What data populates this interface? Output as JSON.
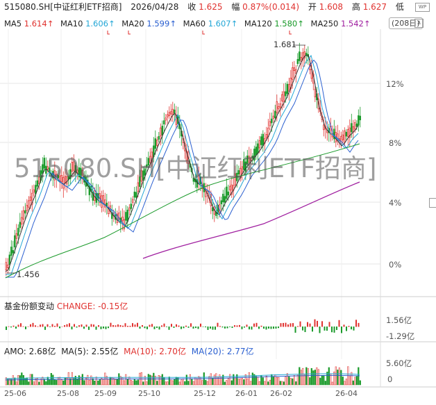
{
  "header": {
    "symbol": "515080.SH[中证红利ETF招商]",
    "date": "2026/04/28",
    "close_label": "收",
    "close_value": "1.625",
    "change_label": "幅",
    "change_value": "0.87%(0.014)",
    "open_label": "开",
    "open_value": "1.608",
    "high_label": "高",
    "high_value": "1.627",
    "low_label": "低"
  },
  "ma_bar": {
    "items": [
      {
        "label": "MA5",
        "value": "1.614↑",
        "color": "#e0322f"
      },
      {
        "label": "MA10",
        "value": "1.606↑",
        "color": "#22a6d6"
      },
      {
        "label": "MA20",
        "value": "1.599↑",
        "color": "#2a5fd0"
      },
      {
        "label": "MA60",
        "value": "1.607↑",
        "color": "#22a6d6"
      },
      {
        "label": "MA120",
        "value": "1.580↑",
        "color": "#1a9a2a"
      },
      {
        "label": "MA250",
        "value": "1.542↑",
        "color": "#a020a0"
      }
    ],
    "days_button": "(208日)"
  },
  "watermark": "515080.SH[中证红利ETF招商]",
  "price_annotations": {
    "high": "1.681",
    "low": "1.456"
  },
  "right_axis": [
    "12%",
    "8%",
    "4%",
    "0%"
  ],
  "fund_share": {
    "title": "基金份额变动",
    "change_label": "CHANGE: -0.15亿",
    "axis_top": "1.56亿",
    "axis_bottom": "-1.29亿"
  },
  "amo": {
    "amo": "AMO: 2.68亿",
    "ma5": "MA(5): 2.55亿",
    "ma10": "MA(10): 2.70亿",
    "ma20": "MA(20): 2.77亿",
    "axis_top": "5.60亿",
    "axis_bottom": "0"
  },
  "date_axis": [
    "25-06",
    "25-08",
    "25-09",
    "25-10",
    "25-12",
    "26-01",
    "26-02",
    "26-04"
  ],
  "icons": {
    "wp": "WP",
    "collapse": "∧"
  },
  "colors": {
    "up": "#e0322f",
    "down": "#1a9a2a",
    "ma5": "#e0322f",
    "ma10": "#22a6d6",
    "ma20": "#2a5fd0",
    "ma120": "#1a9a2a",
    "ma250": "#a020a0"
  }
}
